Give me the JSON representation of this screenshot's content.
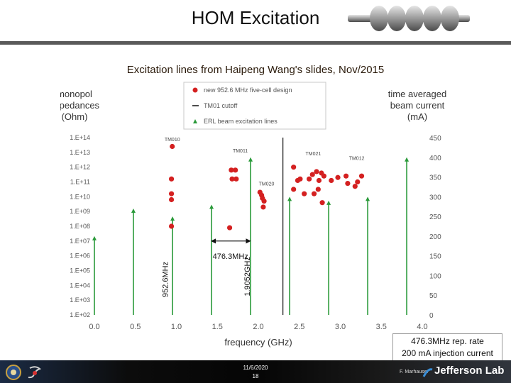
{
  "slide": {
    "title": "HOM Excitation",
    "subtitle": "Excitation lines from Haipeng Wang's slides, Nov/2015",
    "note_line1": "476.3MHz rep. rate",
    "note_line2": "200 mA injection current",
    "date": "11/6/2020",
    "page": "18",
    "author": "F. Marhauser",
    "lab": "Jefferson Lab"
  },
  "chart_data": {
    "type": "scatter",
    "xlabel": "frequency (GHz)",
    "ylabel_left": [
      "monopol",
      "impedances",
      "(Ohm)"
    ],
    "ylabel_right": [
      "time averaged",
      "beam current",
      "(mA)"
    ],
    "xlim": [
      0,
      4
    ],
    "xticks": [
      0.0,
      0.5,
      1.0,
      1.5,
      2.0,
      2.5,
      3.0,
      3.5,
      4.0
    ],
    "xtick_labels": [
      "0.0",
      "0.5",
      "1.0",
      "1.5",
      "2.0",
      "2.5",
      "3.0",
      "3.5",
      "4.0"
    ],
    "yticks_left": [
      "1.E+02",
      "1.E+03",
      "1.E+04",
      "1.E+05",
      "1.E+06",
      "1.E+07",
      "1.E+08",
      "1.E+09",
      "1.E+10",
      "1.E+11",
      "1.E+12",
      "1.E+13",
      "1.E+14"
    ],
    "ylim_left_log10": [
      2,
      14
    ],
    "yticks_right": [
      "0",
      "50",
      "100",
      "150",
      "200",
      "250",
      "300",
      "350",
      "400",
      "450"
    ],
    "ylim_right": [
      0,
      450
    ],
    "legend": {
      "position": "top-center",
      "entries": [
        "new 952.6 MHz five-cell design",
        "TM01 cutoff",
        "ERL beam excitation lines"
      ]
    },
    "series": [
      {
        "name": "new 952.6 MHz five-cell design",
        "color": "#d42020",
        "marker": "circle",
        "points": [
          [
            0.95,
            13.4
          ],
          [
            0.94,
            11.2
          ],
          [
            0.94,
            10.2
          ],
          [
            0.94,
            9.8
          ],
          [
            0.94,
            8.0
          ],
          [
            1.67,
            11.8
          ],
          [
            1.72,
            11.8
          ],
          [
            1.68,
            11.2
          ],
          [
            1.73,
            11.2
          ],
          [
            1.65,
            7.9
          ],
          [
            2.02,
            10.3
          ],
          [
            2.04,
            10.1
          ],
          [
            2.05,
            9.9
          ],
          [
            2.07,
            9.7
          ],
          [
            2.06,
            9.3
          ],
          [
            2.43,
            12.0
          ],
          [
            2.48,
            11.1
          ],
          [
            2.43,
            10.5
          ],
          [
            2.51,
            11.2
          ],
          [
            2.56,
            10.2
          ],
          [
            2.62,
            11.2
          ],
          [
            2.66,
            11.5
          ],
          [
            2.68,
            10.2
          ],
          [
            2.71,
            11.7
          ],
          [
            2.74,
            11.1
          ],
          [
            2.73,
            10.5
          ],
          [
            2.77,
            11.6
          ],
          [
            2.8,
            11.4
          ],
          [
            2.78,
            9.6
          ],
          [
            2.89,
            11.1
          ],
          [
            2.97,
            11.3
          ],
          [
            3.07,
            11.4
          ],
          [
            3.09,
            10.9
          ],
          [
            3.18,
            10.7
          ],
          [
            3.21,
            11.0
          ],
          [
            3.26,
            11.4
          ]
        ]
      },
      {
        "name": "TM01 cutoff",
        "color": "#111111",
        "x": 2.3
      },
      {
        "name": "ERL beam excitation lines",
        "color": "#2a9a3a",
        "lines": [
          {
            "x": 0.0,
            "current_mA": 200
          },
          {
            "x": 0.476,
            "current_mA": 270
          },
          {
            "x": 0.953,
            "current_mA": 250
          },
          {
            "x": 1.429,
            "current_mA": 280
          },
          {
            "x": 1.905,
            "current_mA": 400
          },
          {
            "x": 2.382,
            "current_mA": 300
          },
          {
            "x": 2.858,
            "current_mA": 290
          },
          {
            "x": 3.334,
            "current_mA": 300
          },
          {
            "x": 3.81,
            "current_mA": 400
          }
        ]
      }
    ],
    "mode_labels": [
      {
        "text": "TM010",
        "x": 0.95,
        "y_log10": 13.75
      },
      {
        "text": "TM011",
        "x": 1.78,
        "y_log10": 13.0
      },
      {
        "text": "TM020",
        "x": 2.1,
        "y_log10": 10.75
      },
      {
        "text": "TM021",
        "x": 2.67,
        "y_log10": 12.8
      },
      {
        "text": "TM012",
        "x": 3.2,
        "y_log10": 12.5
      }
    ],
    "annotations": [
      {
        "text": "952.6MHz",
        "x": 0.95,
        "y_log10": 4.4,
        "rotated": true
      },
      {
        "text": "1.9052GHz",
        "x": 1.95,
        "y_log10": 4.6,
        "rotated": true
      },
      {
        "text": "476.3MHz",
        "x": 1.66,
        "y_log10": 5.8
      }
    ],
    "arrow": {
      "x_from": 1.43,
      "x_to": 1.9,
      "y_log10": 7.0
    }
  }
}
